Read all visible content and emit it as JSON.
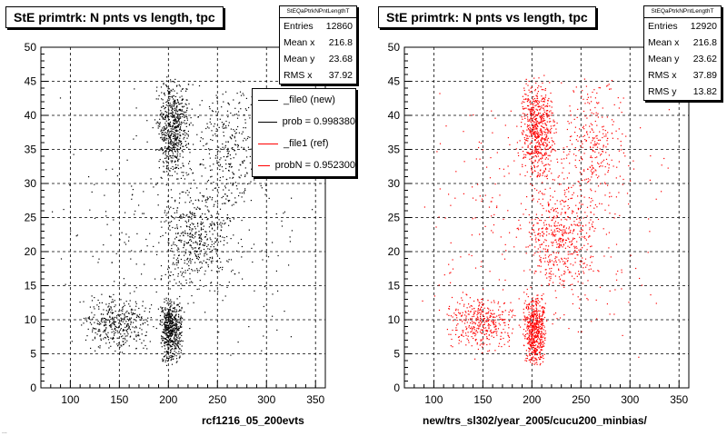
{
  "footer_text": "...",
  "chart_data": [
    {
      "type": "scatter",
      "title": "StE primtrk: N pnts vs length, tpc",
      "xlabel": "rcf1216_05_200evts",
      "ylabel": "",
      "xlim": [
        70,
        360
      ],
      "ylim": [
        0,
        50
      ],
      "x_ticks": [
        100,
        150,
        200,
        250,
        300,
        350
      ],
      "y_ticks": [
        0,
        5,
        10,
        15,
        20,
        25,
        30,
        35,
        40,
        45,
        50
      ],
      "grid": true,
      "marker_color": "#000000",
      "series": [
        {
          "clusters": [
            {
              "x": [
                185,
                225
              ],
              "y": [
                30,
                46
              ],
              "weight": 0.24
            },
            {
              "x": [
                190,
                215
              ],
              "y": [
                3,
                14
              ],
              "weight": 0.22
            },
            {
              "x": [
                110,
                185
              ],
              "y": [
                5,
                14
              ],
              "weight": 0.14
            },
            {
              "x": [
                190,
                270
              ],
              "y": [
                14,
                30
              ],
              "weight": 0.16
            },
            {
              "x": [
                225,
                300
              ],
              "y": [
                25,
                46
              ],
              "weight": 0.1
            },
            {
              "x": [
                80,
                350
              ],
              "y": [
                3,
                46
              ],
              "weight": 0.14
            }
          ]
        }
      ],
      "stats": {
        "header": "StEQaPtrkNPntLengthT",
        "rows": [
          {
            "label": "Entries",
            "value": "12860"
          },
          {
            "label": "Mean x",
            "value": "216.8"
          },
          {
            "label": "Mean y",
            "value": "23.68"
          },
          {
            "label": "RMS x",
            "value": "37.92"
          }
        ]
      },
      "legend": {
        "entries": [
          {
            "label": "_file0 (new)",
            "color": "#000000"
          },
          {
            "label": "prob = 0.998380",
            "color": "#000000"
          },
          {
            "label": "_file1 (ref)",
            "color": "#ff0000"
          },
          {
            "label": "probN = 0.952300",
            "color": "#ff0000"
          }
        ]
      }
    },
    {
      "type": "scatter",
      "title": "StE primtrk: N pnts vs length, tpc",
      "xlabel": "new/trs_sl302/year_2005/cucu200_minbias/",
      "ylabel": "",
      "xlim": [
        70,
        360
      ],
      "ylim": [
        0,
        50
      ],
      "x_ticks": [
        100,
        150,
        200,
        250,
        300,
        350
      ],
      "y_ticks": [
        0,
        5,
        10,
        15,
        20,
        25,
        30,
        35,
        40,
        45,
        50
      ],
      "grid": true,
      "marker_color": "#ff0000",
      "series": [
        {
          "clusters": [
            {
              "x": [
                185,
                225
              ],
              "y": [
                30,
                46
              ],
              "weight": 0.24
            },
            {
              "x": [
                190,
                215
              ],
              "y": [
                3,
                14
              ],
              "weight": 0.22
            },
            {
              "x": [
                110,
                185
              ],
              "y": [
                5,
                14
              ],
              "weight": 0.14
            },
            {
              "x": [
                190,
                270
              ],
              "y": [
                14,
                30
              ],
              "weight": 0.16
            },
            {
              "x": [
                225,
                300
              ],
              "y": [
                25,
                46
              ],
              "weight": 0.1
            },
            {
              "x": [
                80,
                350
              ],
              "y": [
                3,
                46
              ],
              "weight": 0.14
            }
          ]
        }
      ],
      "stats": {
        "header": "StEQaPtrkNPntLengthT",
        "rows": [
          {
            "label": "Entries",
            "value": "12920"
          },
          {
            "label": "Mean x",
            "value": "216.8"
          },
          {
            "label": "Mean y",
            "value": "23.62"
          },
          {
            "label": "RMS x",
            "value": "37.89"
          },
          {
            "label": "RMS y",
            "value": "13.82"
          }
        ]
      }
    }
  ]
}
